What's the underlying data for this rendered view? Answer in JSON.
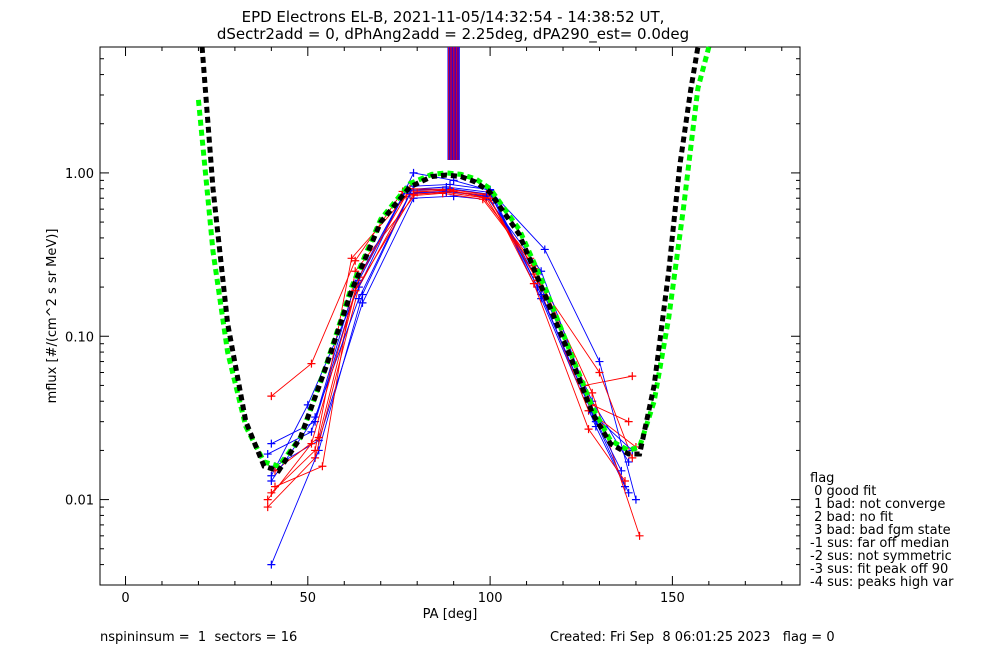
{
  "title_line1": "EPD Electrons EL-B, 2021-11-05/14:32:54 - 14:38:52 UT,",
  "title_line2": "dSectr2add = 0, dPhAng2add = 2.25deg, dPA290_est=   0.0deg",
  "footer": {
    "left": "nspininsum =  1  sectors = 16",
    "right": "Created: Fri Sep  8 06:01:25 2023   flag = 0"
  },
  "legend": {
    "title": "flag",
    "items": [
      " 0 good fit",
      " 1 bad: not converge",
      " 2 bad: no fit",
      " 3 bad: bad fgm state",
      "-1 sus: far off median",
      "-2 sus: not symmetric",
      "-3 sus: fit peak off 90",
      "-4 sus: peaks high var"
    ]
  },
  "colors": {
    "axes": "#000000",
    "series_a": "#0000ff",
    "series_b": "#ff0000",
    "fit_green": "#00ff00",
    "fit_black": "#000000"
  },
  "chart_data": {
    "type": "scatter",
    "xlabel": "PA [deg]",
    "ylabel": "mflux [#/(cm^2 s sr MeV)]",
    "xlim": [
      -7,
      185
    ],
    "ylim": [
      0.003,
      5.9
    ],
    "ylog": true,
    "x_ticks": [
      0,
      50,
      100,
      150
    ],
    "x_tick_labels": [
      "0",
      "50",
      "100",
      "150"
    ],
    "y_ticks": [
      0.01,
      0.1,
      1.0
    ],
    "y_tick_labels": [
      "0.01",
      "0.10",
      "1.00"
    ],
    "pa_bins": [
      40,
      52,
      64,
      76,
      88,
      100,
      112,
      124,
      136
    ],
    "series": [
      {
        "color": "blue",
        "x": [
          40,
          52,
          64,
          77,
          89,
          100,
          113,
          128,
          138
        ],
        "y": [
          0.022,
          0.03,
          0.22,
          0.78,
          0.8,
          0.74,
          0.22,
          0.04,
          0.017
        ]
      },
      {
        "color": "red",
        "x": [
          40,
          51,
          63,
          76,
          87,
          99,
          112,
          126,
          139
        ],
        "y": [
          0.043,
          0.068,
          0.29,
          0.77,
          0.78,
          0.73,
          0.26,
          0.05,
          0.057
        ]
      },
      {
        "color": "blue",
        "x": [
          41,
          53,
          65,
          79,
          90,
          101,
          114,
          129,
          137
        ],
        "y": [
          0.016,
          0.023,
          0.16,
          0.7,
          0.72,
          0.68,
          0.17,
          0.028,
          0.012
        ]
      },
      {
        "color": "red",
        "x": [
          39,
          52,
          64,
          78,
          88,
          99,
          112,
          127,
          140
        ],
        "y": [
          0.009,
          0.018,
          0.2,
          0.74,
          0.76,
          0.7,
          0.24,
          0.035,
          0.021
        ]
      },
      {
        "color": "blue",
        "x": [
          40,
          53,
          65,
          79,
          89,
          100,
          113,
          129,
          138
        ],
        "y": [
          0.004,
          0.02,
          0.18,
          0.83,
          0.85,
          0.79,
          0.2,
          0.03,
          0.011
        ]
      },
      {
        "color": "red",
        "x": [
          41,
          54,
          63,
          80,
          88,
          98,
          111,
          128,
          141
        ],
        "y": [
          0.012,
          0.016,
          0.25,
          0.76,
          0.79,
          0.71,
          0.3,
          0.045,
          0.006
        ]
      },
      {
        "color": "blue",
        "x": [
          39,
          51,
          63,
          77,
          88,
          100,
          114,
          128,
          136
        ],
        "y": [
          0.019,
          0.026,
          0.21,
          0.79,
          0.82,
          0.76,
          0.18,
          0.034,
          0.015
        ]
      },
      {
        "color": "red",
        "x": [
          40,
          52,
          62,
          77,
          87,
          98,
          112,
          128,
          138
        ],
        "y": [
          0.011,
          0.02,
          0.3,
          0.72,
          0.75,
          0.69,
          0.27,
          0.038,
          0.03
        ]
      },
      {
        "color": "blue",
        "x": [
          40,
          50,
          64,
          79,
          90,
          100,
          115,
          130,
          140
        ],
        "y": [
          0.014,
          0.038,
          0.2,
          1.0,
          0.9,
          0.78,
          0.34,
          0.07,
          0.01
        ]
      },
      {
        "color": "red",
        "x": [
          41,
          53,
          64,
          78,
          89,
          99,
          113,
          130,
          139
        ],
        "y": [
          0.015,
          0.024,
          0.23,
          0.8,
          0.79,
          0.74,
          0.22,
          0.06,
          0.018
        ]
      },
      {
        "color": "blue",
        "x": [
          40,
          52,
          64,
          78,
          88,
          99,
          114,
          129,
          139
        ],
        "y": [
          0.013,
          0.032,
          0.17,
          0.75,
          0.77,
          0.72,
          0.25,
          0.032,
          0.02
        ]
      },
      {
        "color": "red",
        "x": [
          39,
          51,
          63,
          79,
          90,
          100,
          112,
          127,
          137
        ],
        "y": [
          0.01,
          0.022,
          0.19,
          0.74,
          0.77,
          0.7,
          0.21,
          0.027,
          0.013
        ]
      }
    ],
    "fit_curves": [
      {
        "color": "green",
        "x": [
          20,
          24,
          28,
          33,
          38,
          42,
          48,
          55,
          62,
          70,
          78,
          84,
          88,
          92,
          96,
          100,
          108,
          115,
          122,
          128,
          133,
          138,
          141,
          145,
          149,
          153,
          157,
          160
        ],
        "y": [
          2.8,
          0.33,
          0.08,
          0.028,
          0.017,
          0.016,
          0.024,
          0.066,
          0.2,
          0.52,
          0.86,
          0.98,
          1.0,
          0.98,
          0.92,
          0.8,
          0.45,
          0.2,
          0.08,
          0.037,
          0.023,
          0.02,
          0.021,
          0.04,
          0.13,
          0.6,
          3.3,
          5.9
        ]
      },
      {
        "color": "black",
        "x": [
          21,
          24,
          28,
          33,
          38,
          42,
          48,
          55,
          62,
          70,
          78,
          84,
          88,
          92,
          96,
          100,
          108,
          115,
          122,
          128,
          133,
          138,
          141,
          145,
          149,
          152,
          155,
          157
        ],
        "y": [
          5.9,
          0.8,
          0.12,
          0.03,
          0.016,
          0.015,
          0.024,
          0.065,
          0.19,
          0.5,
          0.82,
          0.95,
          0.97,
          0.95,
          0.88,
          0.76,
          0.42,
          0.18,
          0.075,
          0.034,
          0.022,
          0.019,
          0.019,
          0.05,
          0.25,
          1.1,
          3.2,
          5.9
        ]
      }
    ],
    "peak_marks": {
      "x": [
        88.5,
        91.5
      ],
      "y_top": 5.9,
      "y_bottom": 1.2
    }
  }
}
